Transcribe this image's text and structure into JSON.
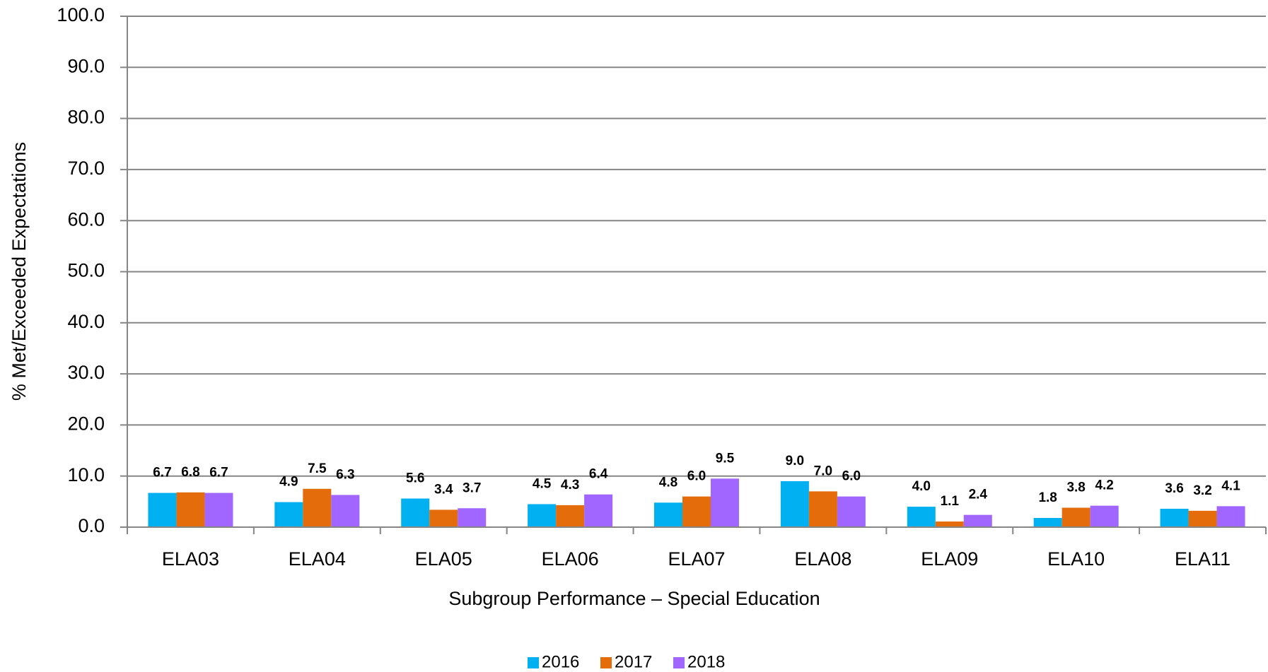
{
  "chart_data": {
    "type": "bar",
    "xlabel": "Subgroup Performance – Special Education",
    "ylabel": "% Met/Exceeded Expectations",
    "categories": [
      "ELA03",
      "ELA04",
      "ELA05",
      "ELA06",
      "ELA07",
      "ELA08",
      "ELA09",
      "ELA10",
      "ELA11"
    ],
    "series": [
      {
        "name": "2016",
        "color": "#00b0f0",
        "values": [
          6.7,
          4.9,
          5.6,
          4.5,
          4.8,
          9.0,
          4.0,
          1.8,
          3.6
        ],
        "value_labels": [
          "6.7",
          "4.9",
          "5.6",
          "4.5",
          "4.8",
          "9.0",
          "4.0",
          "1.8",
          "3.6"
        ]
      },
      {
        "name": "2017",
        "color": "#e46c0a",
        "values": [
          6.8,
          7.5,
          3.4,
          4.3,
          6.0,
          7.0,
          1.1,
          3.8,
          3.2
        ],
        "value_labels": [
          "6.8",
          "7.5",
          "3.4",
          "4.3",
          "6.0",
          "7.0",
          "1.1",
          "3.8",
          "3.2"
        ]
      },
      {
        "name": "2018",
        "color": "#a066ff",
        "values": [
          6.7,
          6.3,
          3.7,
          6.4,
          9.5,
          6.0,
          2.4,
          4.2,
          4.1
        ],
        "value_labels": [
          "6.7",
          "6.3",
          "3.7",
          "6.4",
          "9.5",
          "6.0",
          "2.4",
          "4.2",
          "4.1"
        ]
      }
    ],
    "ylim": [
      0,
      100
    ],
    "yticks": [
      {
        "value": 0,
        "label": "0.0"
      },
      {
        "value": 10,
        "label": "10.0"
      },
      {
        "value": 20,
        "label": "20.0"
      },
      {
        "value": 30,
        "label": "30.0"
      },
      {
        "value": 40,
        "label": "40.0"
      },
      {
        "value": 50,
        "label": "50.0"
      },
      {
        "value": 60,
        "label": "60.0"
      },
      {
        "value": 70,
        "label": "70.0"
      },
      {
        "value": 80,
        "label": "80.0"
      },
      {
        "value": 90,
        "label": "90.0"
      },
      {
        "value": 100,
        "label": "100.0"
      }
    ],
    "grid": true,
    "legend": "bottom"
  }
}
